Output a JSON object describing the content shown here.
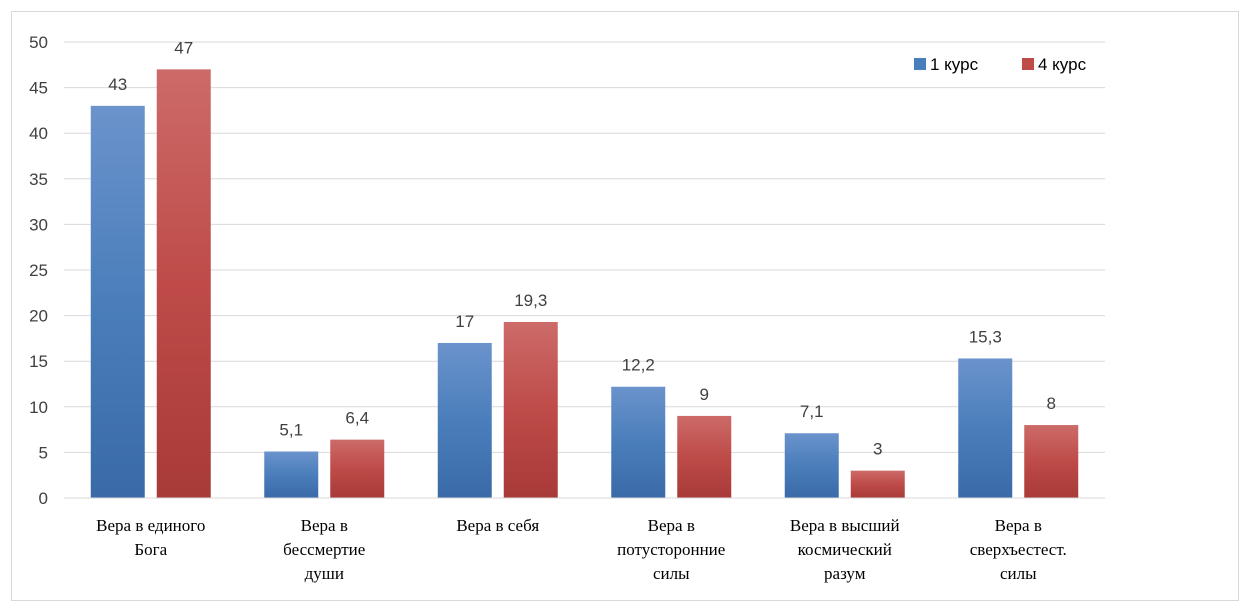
{
  "chart_data": {
    "type": "bar",
    "categories": [
      [
        "Вера в единого",
        "Бога"
      ],
      [
        "Вера в",
        "бессмертие",
        "души"
      ],
      [
        "Вера в себя"
      ],
      [
        "Вера в",
        "потусторонние",
        "силы"
      ],
      [
        "Вера в высший",
        "космический",
        "разум"
      ],
      [
        "Вера в",
        "сверхъестест.",
        "силы"
      ]
    ],
    "series": [
      {
        "name": "1 курс",
        "color": "#4a7ebb",
        "values": [
          43,
          5.1,
          17,
          12.2,
          7.1,
          15.3
        ],
        "labels": [
          "43",
          "5,1",
          "17",
          "12,2",
          "7,1",
          "15,3"
        ]
      },
      {
        "name": "4 курс",
        "color": "#be4b48",
        "values": [
          47,
          6.4,
          19.3,
          9,
          3,
          8
        ],
        "labels": [
          "47",
          "6,4",
          "19,3",
          "9",
          "3",
          "8"
        ]
      }
    ],
    "ylim": [
      0,
      50
    ],
    "yticks": [
      0,
      5,
      10,
      15,
      20,
      25,
      30,
      35,
      40,
      45,
      50
    ],
    "grid": true,
    "legend": "top-right"
  }
}
